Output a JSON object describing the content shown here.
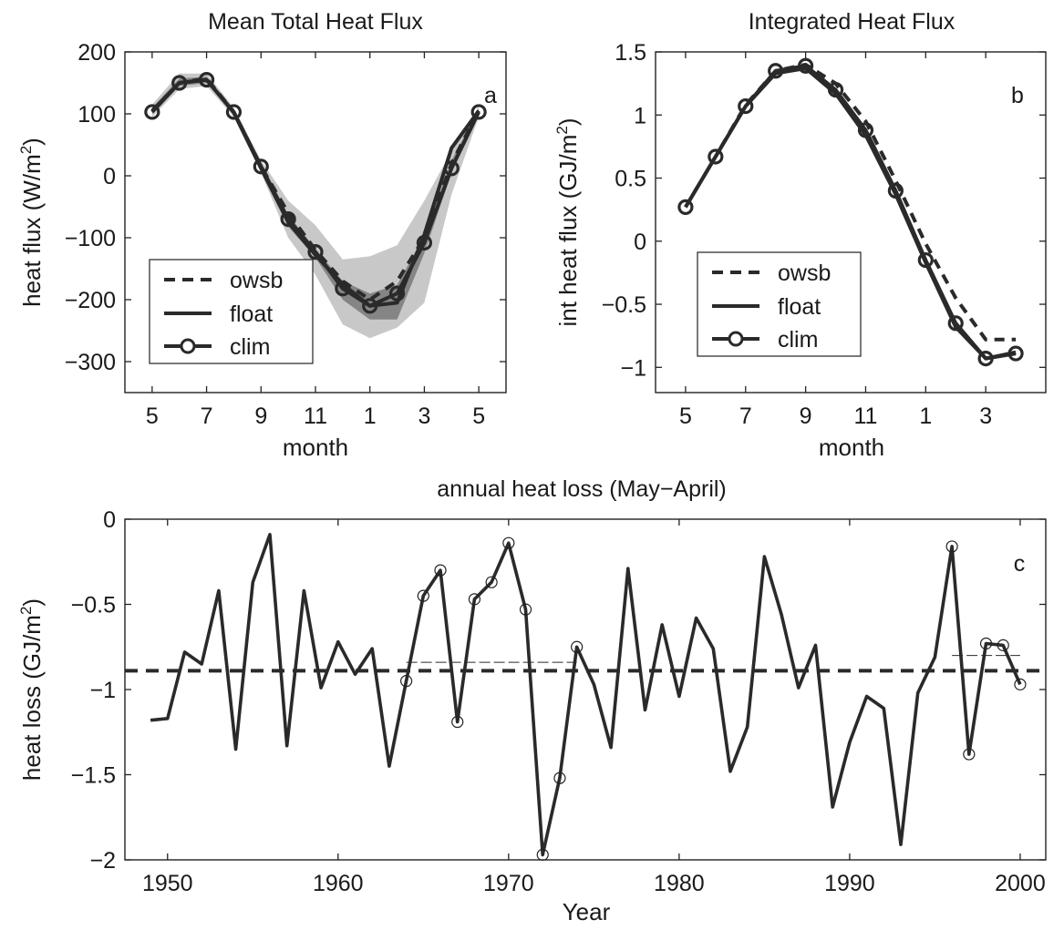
{
  "chart_data": [
    {
      "id": "a",
      "type": "line",
      "title": "Mean Total Heat Flux",
      "panel_label": "a",
      "xlabel": "month",
      "ylabel_main": "heat flux (W/m",
      "ylabel_sup": "2",
      "ylabel_tail": ")",
      "x_ticks": [
        {
          "pos": 0,
          "label": "5"
        },
        {
          "pos": 2,
          "label": "7"
        },
        {
          "pos": 4,
          "label": "9"
        },
        {
          "pos": 6,
          "label": "11"
        },
        {
          "pos": 8,
          "label": "1"
        },
        {
          "pos": 10,
          "label": "3"
        },
        {
          "pos": 12,
          "label": "5"
        }
      ],
      "y_ticks": [
        200,
        100,
        0,
        -100,
        -200,
        -300
      ],
      "y_tick_labels": [
        "200",
        "100",
        "0",
        "−100",
        "−200",
        "−300"
      ],
      "xlim": [
        -1,
        13
      ],
      "ylim": [
        -350,
        200
      ],
      "x": [
        0,
        1,
        2,
        3,
        4,
        5,
        6,
        7,
        8,
        9,
        10,
        11,
        12
      ],
      "series": [
        {
          "name": "owsb",
          "style": "dashed",
          "values": [
            105,
            150,
            157,
            103,
            15,
            -60,
            -120,
            -170,
            -200,
            -170,
            -100,
            20,
            105
          ]
        },
        {
          "name": "float",
          "style": "solid",
          "values": [
            105,
            150,
            155,
            102,
            12,
            -75,
            -128,
            -175,
            -210,
            -205,
            -95,
            45,
            105
          ]
        },
        {
          "name": "clim",
          "style": "solid-circle",
          "values": [
            103,
            150,
            155,
            103,
            15,
            -70,
            -123,
            -182,
            -210,
            -190,
            -108,
            12,
            103
          ]
        }
      ],
      "band_light": {
        "upper": [
          115,
          165,
          165,
          110,
          25,
          -40,
          -80,
          -135,
          -130,
          -112,
          -40,
          40,
          112
        ],
        "lower": [
          95,
          140,
          145,
          95,
          5,
          -100,
          -160,
          -240,
          -262,
          -245,
          -205,
          -30,
          95
        ]
      },
      "band_dark": {
        "upper": [
          110,
          157,
          160,
          105,
          18,
          -63,
          -118,
          -170,
          -190,
          -176,
          -96,
          25,
          108
        ],
        "lower": [
          100,
          145,
          150,
          100,
          10,
          -82,
          -132,
          -200,
          -232,
          -232,
          -125,
          5,
          100
        ]
      },
      "legend": {
        "placement": "lower-left",
        "entries": [
          "owsb",
          "float",
          "clim"
        ]
      },
      "colors": {
        "line": "#2a2a2a",
        "band_light": "#c8c8c8",
        "band_dark": "#858585"
      }
    },
    {
      "id": "b",
      "type": "line",
      "title": "Integrated Heat Flux",
      "panel_label": "b",
      "xlabel": "month",
      "ylabel_main": "int heat flux (GJ/m",
      "ylabel_sup": "2",
      "ylabel_tail": ")",
      "x_ticks": [
        {
          "pos": 0,
          "label": "5"
        },
        {
          "pos": 2,
          "label": "7"
        },
        {
          "pos": 4,
          "label": "9"
        },
        {
          "pos": 6,
          "label": "11"
        },
        {
          "pos": 8,
          "label": "1"
        },
        {
          "pos": 10,
          "label": "3"
        }
      ],
      "y_ticks": [
        1.5,
        1,
        0.5,
        0,
        -0.5,
        -1
      ],
      "y_tick_labels": [
        "1.5",
        "1",
        "0.5",
        "0",
        "−0.5",
        "−1"
      ],
      "xlim": [
        -1,
        12
      ],
      "ylim": [
        -1.2,
        1.5
      ],
      "x": [
        0,
        1,
        2,
        3,
        4,
        5,
        6,
        7,
        8,
        9,
        10,
        11
      ],
      "series": [
        {
          "name": "owsb",
          "style": "dashed",
          "values": [
            0.27,
            0.67,
            1.08,
            1.35,
            1.4,
            1.25,
            0.95,
            0.48,
            -0.02,
            -0.45,
            -0.78,
            -0.78
          ]
        },
        {
          "name": "float",
          "style": "solid",
          "values": [
            0.27,
            0.67,
            1.07,
            1.33,
            1.37,
            1.17,
            0.84,
            0.37,
            -0.17,
            -0.68,
            -0.93,
            -0.88
          ]
        },
        {
          "name": "clim",
          "style": "solid-circle",
          "values": [
            0.27,
            0.67,
            1.07,
            1.35,
            1.39,
            1.2,
            0.88,
            0.4,
            -0.15,
            -0.65,
            -0.93,
            -0.89
          ]
        }
      ],
      "legend": {
        "placement": "lower-left",
        "entries": [
          "owsb",
          "float",
          "clim"
        ]
      },
      "colors": {
        "line": "#2a2a2a"
      }
    },
    {
      "id": "c",
      "type": "line",
      "title": "annual heat loss (May−April)",
      "panel_label": "c",
      "xlabel": "Year",
      "ylabel_main": "heat loss (GJ/m",
      "ylabel_sup": "2",
      "ylabel_tail": ")",
      "x_ticks": [
        {
          "pos": 1950,
          "label": "1950"
        },
        {
          "pos": 1960,
          "label": "1960"
        },
        {
          "pos": 1970,
          "label": "1970"
        },
        {
          "pos": 1980,
          "label": "1980"
        },
        {
          "pos": 1990,
          "label": "1990"
        },
        {
          "pos": 2000,
          "label": "2000"
        }
      ],
      "y_ticks": [
        0,
        -0.5,
        -1,
        -1.5,
        -2
      ],
      "y_tick_labels": [
        "0",
        "−0.5",
        "−1",
        "−1.5",
        "−2"
      ],
      "xlim": [
        1947.5,
        2001.5
      ],
      "ylim": [
        -2,
        0
      ],
      "years": [
        1949,
        1950,
        1951,
        1952,
        1953,
        1954,
        1955,
        1956,
        1957,
        1958,
        1959,
        1960,
        1961,
        1962,
        1963,
        1964,
        1965,
        1966,
        1967,
        1968,
        1969,
        1970,
        1971,
        1972,
        1973,
        1974,
        1975,
        1976,
        1977,
        1978,
        1979,
        1980,
        1981,
        1982,
        1983,
        1984,
        1985,
        1986,
        1987,
        1988,
        1989,
        1990,
        1991,
        1992,
        1993,
        1994,
        1995,
        1996,
        1997,
        1998,
        1999,
        2000
      ],
      "values": [
        -1.18,
        -1.17,
        -0.78,
        -0.85,
        -0.42,
        -1.35,
        -0.37,
        -0.09,
        -1.33,
        -0.42,
        -0.99,
        -0.72,
        -0.91,
        -0.76,
        -1.45,
        -0.95,
        -0.45,
        -0.3,
        -1.19,
        -0.47,
        -0.37,
        -0.14,
        -0.53,
        -1.97,
        -1.52,
        -0.75,
        -0.97,
        -1.34,
        -0.29,
        -1.12,
        -0.62,
        -1.04,
        -0.58,
        -0.76,
        -1.48,
        -1.22,
        -0.22,
        -0.56,
        -0.99,
        -0.74,
        -1.69,
        -1.31,
        -1.04,
        -1.11,
        -1.91,
        -1.02,
        -0.81,
        -0.16,
        -1.38,
        -0.73,
        -0.74,
        -0.97
      ],
      "circled_years": [
        1964,
        1965,
        1966,
        1967,
        1968,
        1969,
        1970,
        1971,
        1972,
        1973,
        1974,
        1996,
        1997,
        1998,
        1999,
        2000
      ],
      "mean_value": -0.89,
      "sub_means": [
        {
          "x_start": 1964,
          "x_end": 1974,
          "value": -0.84
        },
        {
          "x_start": 1996,
          "x_end": 2000,
          "value": -0.8
        }
      ],
      "colors": {
        "line": "#2a2a2a"
      }
    }
  ]
}
